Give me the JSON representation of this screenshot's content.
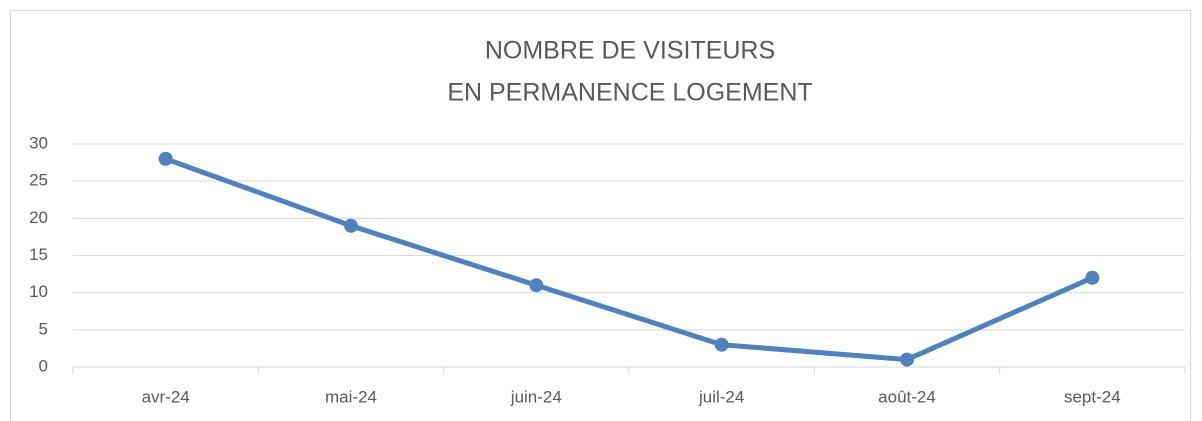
{
  "chart_data": {
    "type": "line",
    "title": [
      "NOMBRE DE VISITEURS",
      "EN PERMANENCE LOGEMENT"
    ],
    "categories": [
      "avr-24",
      "mai-24",
      "juin-24",
      "juil-24",
      "août-24",
      "sept-24"
    ],
    "series": [
      {
        "color": "#4f81bd",
        "values": [
          28,
          19,
          11,
          3,
          1,
          12
        ]
      }
    ],
    "ylim": [
      0,
      30
    ],
    "yticks": [
      0,
      5,
      10,
      15,
      20,
      25,
      30
    ],
    "grid": true
  }
}
